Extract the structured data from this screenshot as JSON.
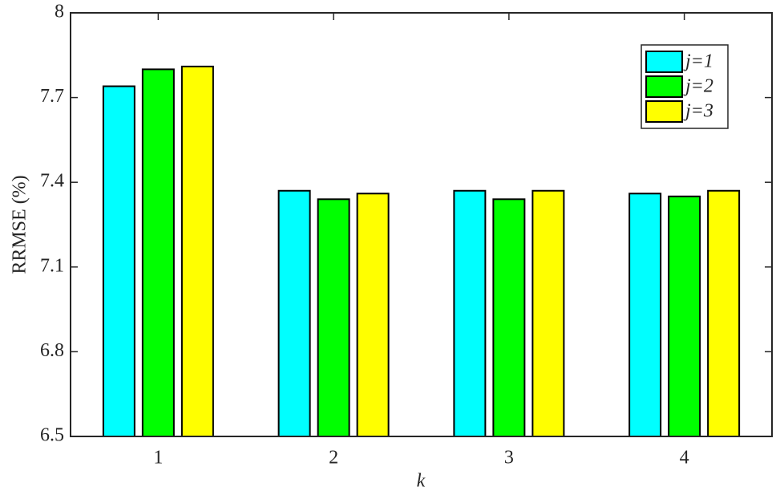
{
  "chart_data": {
    "type": "bar",
    "x_label": "k",
    "y_label": "RRMSE (%)",
    "categories": [
      "1",
      "2",
      "3",
      "4"
    ],
    "series": [
      {
        "name": "j=1",
        "color": "#00ffff",
        "values": [
          7.74,
          7.37,
          7.37,
          7.36
        ]
      },
      {
        "name": "j=2",
        "color": "#00ff00",
        "values": [
          7.8,
          7.34,
          7.34,
          7.35
        ]
      },
      {
        "name": "j=3",
        "color": "#ffff00",
        "values": [
          7.81,
          7.36,
          7.37,
          7.37
        ]
      }
    ],
    "ylim": [
      6.5,
      8
    ],
    "yticks": [
      6.5,
      6.8,
      7.1,
      7.4,
      7.7,
      8
    ],
    "grid": false,
    "legend": "northeast"
  }
}
